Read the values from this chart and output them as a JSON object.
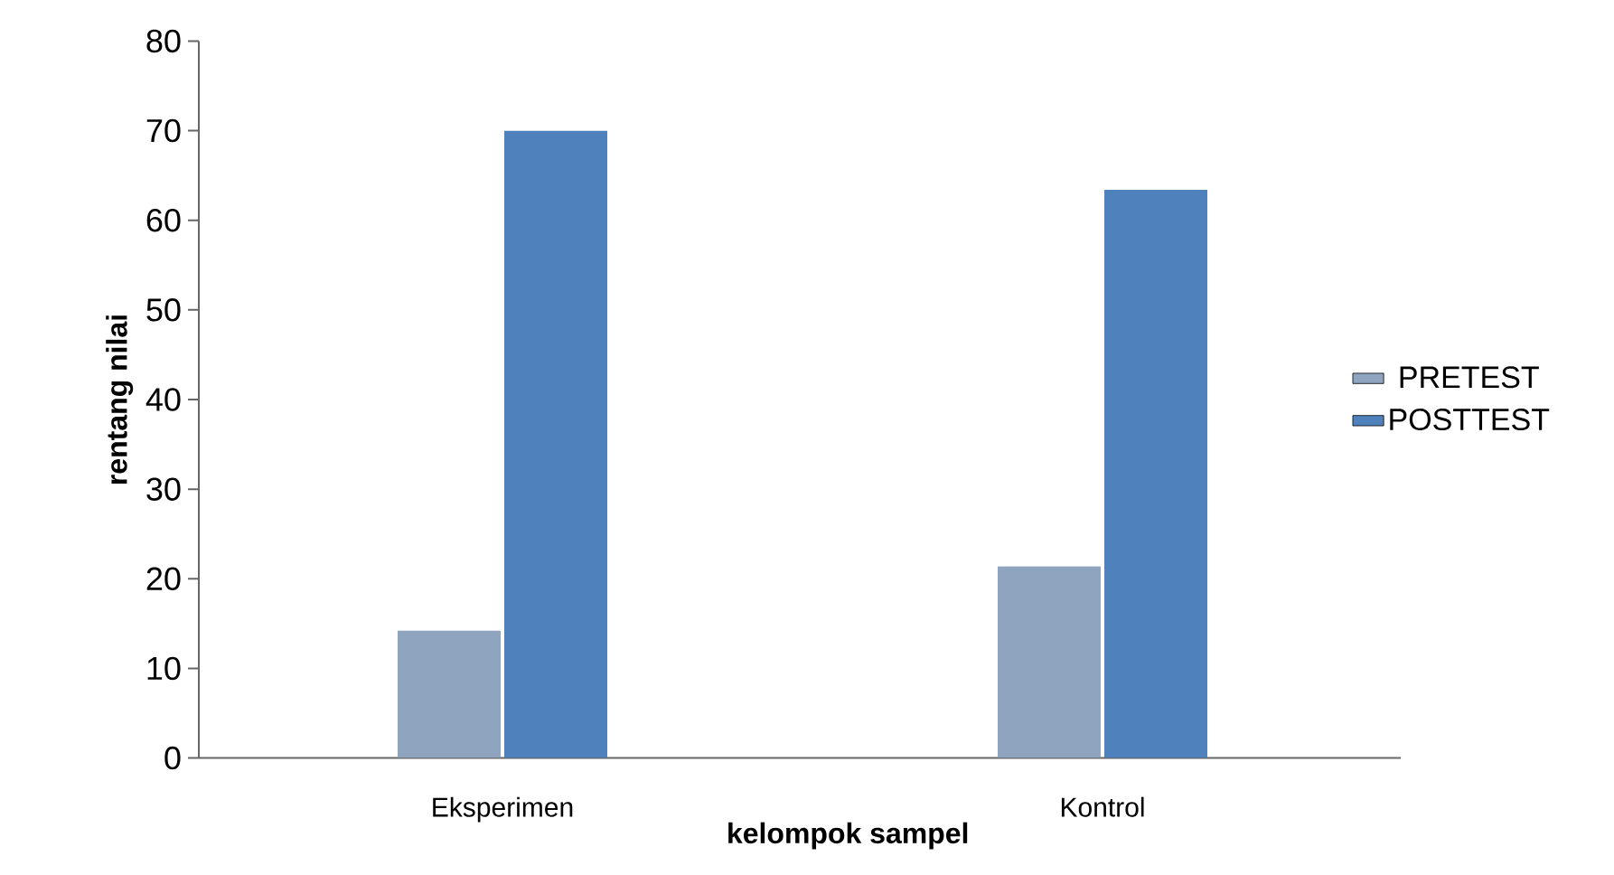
{
  "chart_data": {
    "type": "bar",
    "xlabel": "kelompok sampel",
    "ylabel": "rentang nilai",
    "categories": [
      "Eksperimen",
      "Kontrol"
    ],
    "series": [
      {
        "name": "PRETEST",
        "color": "#8ea4bf",
        "values": [
          14.2,
          21.4
        ]
      },
      {
        "name": "POSTTEST",
        "color": "#4f81bd",
        "values": [
          70,
          63.4
        ]
      }
    ],
    "ylim": [
      0,
      80
    ],
    "yticks": [
      0,
      10,
      20,
      30,
      40,
      50,
      60,
      70,
      80
    ],
    "legend": "right"
  }
}
